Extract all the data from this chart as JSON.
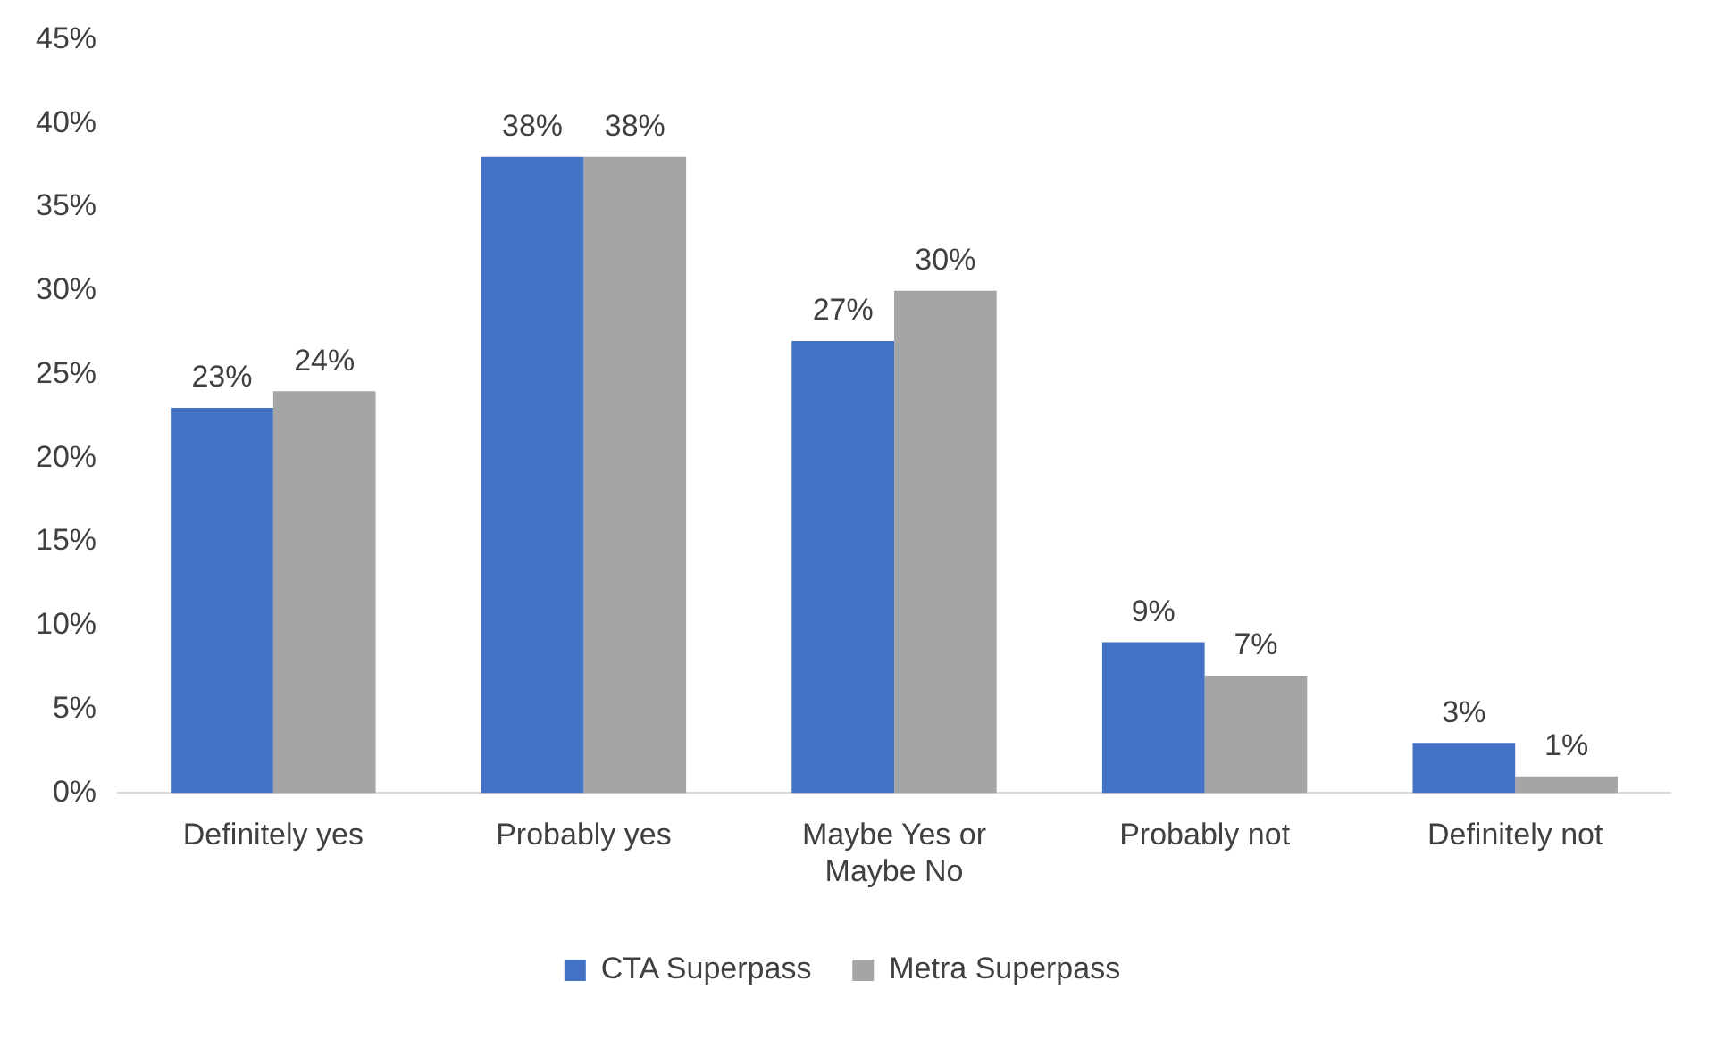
{
  "chart_data": {
    "type": "bar",
    "categories": [
      "Definitely yes",
      "Probably yes",
      "Maybe Yes or Maybe No",
      "Probably not",
      "Definitely not"
    ],
    "series": [
      {
        "name": "CTA Superpass",
        "color": "#4472c4",
        "values": [
          23,
          38,
          27,
          9,
          3
        ],
        "value_labels": [
          "23%",
          "38%",
          "27%",
          "9%",
          "3%"
        ]
      },
      {
        "name": "Metra Superpass",
        "color": "#a5a5a5",
        "values": [
          24,
          38,
          30,
          7,
          1
        ],
        "value_labels": [
          "24%",
          "38%",
          "30%",
          "7%",
          "1%"
        ]
      }
    ],
    "ylim": [
      0,
      45
    ],
    "yticks": [
      {
        "value": 0,
        "label": "0%"
      },
      {
        "value": 5,
        "label": "5%"
      },
      {
        "value": 10,
        "label": "10%"
      },
      {
        "value": 15,
        "label": "15%"
      },
      {
        "value": 20,
        "label": "20%"
      },
      {
        "value": 25,
        "label": "25%"
      },
      {
        "value": 30,
        "label": "30%"
      },
      {
        "value": 35,
        "label": "35%"
      },
      {
        "value": 40,
        "label": "40%"
      },
      {
        "value": 45,
        "label": "45%"
      }
    ],
    "grid": false,
    "legend": "bottom"
  }
}
